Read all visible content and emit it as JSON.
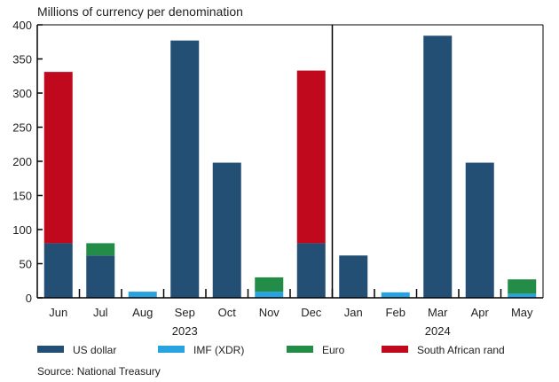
{
  "chart_data": {
    "type": "bar",
    "stacked": true,
    "title": "Millions of currency per denomination",
    "categories": [
      "Jun",
      "Jul",
      "Aug",
      "Sep",
      "Oct",
      "Nov",
      "Dec",
      "Jan",
      "Feb",
      "Mar",
      "Apr",
      "May"
    ],
    "year_groups": [
      {
        "label": "2023",
        "from": 0,
        "to": 6
      },
      {
        "label": "2024",
        "from": 7,
        "to": 11
      }
    ],
    "series": [
      {
        "name": "US dollar",
        "color": "#234f75",
        "values": [
          80,
          62,
          0,
          377,
          198,
          0,
          80,
          62,
          0,
          384,
          198,
          0
        ]
      },
      {
        "name": "IMF (XDR)",
        "color": "#29a3e0",
        "values": [
          0,
          0,
          9,
          0,
          0,
          9,
          0,
          0,
          8,
          0,
          0,
          6
        ]
      },
      {
        "name": "Euro",
        "color": "#238c47",
        "values": [
          0,
          18,
          0,
          0,
          0,
          21,
          0,
          0,
          0,
          0,
          0,
          21
        ]
      },
      {
        "name": "South African rand",
        "color": "#c0091c",
        "values": [
          251,
          0,
          0,
          0,
          0,
          0,
          253,
          0,
          0,
          0,
          0,
          0
        ]
      }
    ],
    "ylim": [
      0,
      400
    ],
    "yticks": [
      0,
      50,
      100,
      150,
      200,
      250,
      300,
      350,
      400
    ],
    "xlabel": "",
    "ylabel": "",
    "legend_position": "bottom",
    "source": "Source: National Treasury"
  }
}
